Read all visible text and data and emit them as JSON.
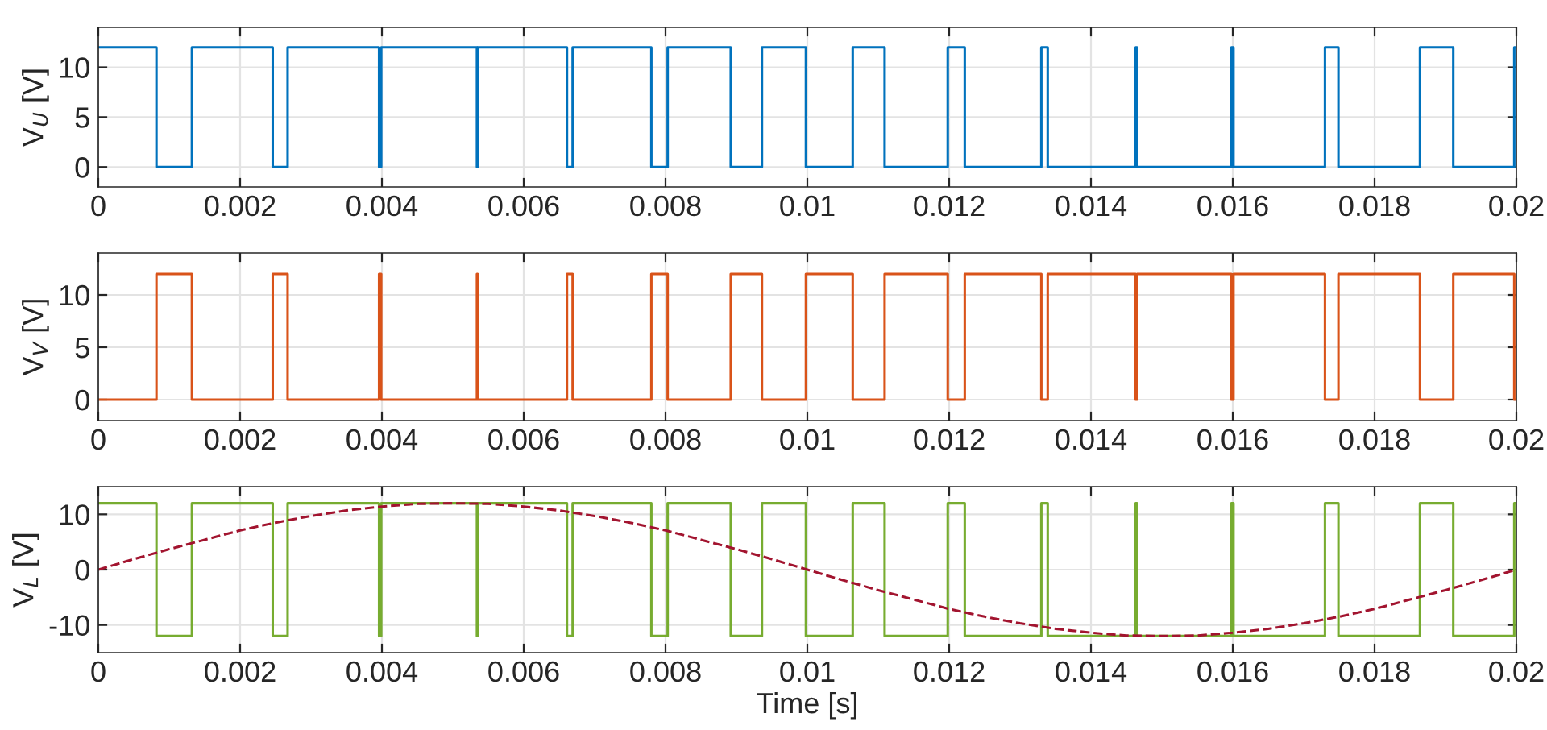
{
  "chart_data": [
    {
      "type": "line",
      "ylabel": "V$_{U}$ [V]",
      "xlim": [
        0,
        0.02
      ],
      "xticks": [
        0,
        0.002,
        0.004,
        0.006,
        0.008,
        0.01,
        0.012,
        0.014,
        0.016,
        0.018,
        0.02
      ],
      "ylim": [
        -2,
        14
      ],
      "yticks": [
        0,
        5,
        10
      ],
      "grid": true,
      "series": [
        {
          "type": "step",
          "color": "#0072bd",
          "x": [
            0,
            0.00082,
            0.00132,
            0.00246,
            0.00267,
            0.00396,
            0.00399,
            0.00534,
            0.00535,
            0.00661,
            0.00669,
            0.0078,
            0.00803,
            0.00892,
            0.00936,
            0.00998,
            0.01064,
            0.01109,
            0.01198,
            0.01222,
            0.0133,
            0.01339,
            0.01463,
            0.01465,
            0.01598,
            0.01601,
            0.0173,
            0.01749,
            0.01864,
            0.01911,
            0.01997,
            0.02
          ],
          "values": [
            12,
            0,
            12,
            0,
            12,
            0,
            12,
            0,
            12,
            0,
            12,
            0,
            12,
            0,
            12,
            0,
            12,
            0,
            12,
            0,
            12,
            0,
            12,
            0,
            12,
            0,
            12,
            0,
            12,
            0,
            12,
            12
          ]
        }
      ]
    },
    {
      "type": "line",
      "ylabel": "V$_{V}$ [V]",
      "xlim": [
        0,
        0.02
      ],
      "xticks": [
        0,
        0.002,
        0.004,
        0.006,
        0.008,
        0.01,
        0.012,
        0.014,
        0.016,
        0.018,
        0.02
      ],
      "ylim": [
        -2,
        14
      ],
      "yticks": [
        0,
        5,
        10
      ],
      "grid": true,
      "series": [
        {
          "type": "step",
          "color": "#d95319",
          "x": [
            0,
            0.00082,
            0.00132,
            0.00246,
            0.00267,
            0.00396,
            0.00399,
            0.00534,
            0.00535,
            0.00661,
            0.00669,
            0.0078,
            0.00803,
            0.00892,
            0.00936,
            0.00998,
            0.01064,
            0.01109,
            0.01198,
            0.01222,
            0.0133,
            0.01339,
            0.01463,
            0.01465,
            0.01598,
            0.01601,
            0.0173,
            0.01749,
            0.01864,
            0.01911,
            0.01997,
            0.02
          ],
          "values": [
            0,
            12,
            0,
            12,
            0,
            12,
            0,
            12,
            0,
            12,
            0,
            12,
            0,
            12,
            0,
            12,
            0,
            12,
            0,
            12,
            0,
            12,
            0,
            12,
            0,
            12,
            0,
            12,
            0,
            12,
            0,
            0
          ]
        }
      ]
    },
    {
      "type": "line",
      "ylabel": "V$_{L}$ [V]",
      "xlabel": "Time [s]",
      "xlim": [
        0,
        0.02
      ],
      "xticks": [
        0,
        0.002,
        0.004,
        0.006,
        0.008,
        0.01,
        0.012,
        0.014,
        0.016,
        0.018,
        0.02
      ],
      "ylim": [
        -15,
        15
      ],
      "yticks": [
        -10,
        0,
        10
      ],
      "grid": true,
      "series": [
        {
          "type": "step",
          "color": "#77ac30",
          "x": [
            0,
            0.00082,
            0.00132,
            0.00246,
            0.00267,
            0.00396,
            0.00399,
            0.00534,
            0.00535,
            0.00661,
            0.00669,
            0.0078,
            0.00803,
            0.00892,
            0.00936,
            0.00998,
            0.01064,
            0.01109,
            0.01198,
            0.01222,
            0.0133,
            0.01339,
            0.01463,
            0.01465,
            0.01598,
            0.01601,
            0.0173,
            0.01749,
            0.01864,
            0.01911,
            0.01997,
            0.02
          ],
          "values": [
            12,
            -12,
            12,
            -12,
            12,
            -12,
            12,
            -12,
            12,
            -12,
            12,
            -12,
            12,
            -12,
            12,
            -12,
            12,
            -12,
            12,
            -12,
            12,
            -12,
            12,
            -12,
            12,
            -12,
            12,
            -12,
            12,
            -12,
            12,
            12
          ]
        },
        {
          "type": "line",
          "line_style": "dashed",
          "color": "#a2142f",
          "x": [
            0,
            0.0005,
            0.001,
            0.0015,
            0.002,
            0.0025,
            0.003,
            0.0035,
            0.004,
            0.0045,
            0.005,
            0.0055,
            0.006,
            0.0065,
            0.007,
            0.0075,
            0.008,
            0.0085,
            0.009,
            0.0095,
            0.01,
            0.0105,
            0.011,
            0.0115,
            0.012,
            0.0125,
            0.013,
            0.0135,
            0.014,
            0.0145,
            0.015,
            0.0155,
            0.016,
            0.0165,
            0.017,
            0.0175,
            0.018,
            0.0185,
            0.019,
            0.0195,
            0.02
          ],
          "values": [
            0,
            1.9,
            3.7,
            5.4,
            7.1,
            8.5,
            9.7,
            10.7,
            11.4,
            11.9,
            12,
            11.9,
            11.4,
            10.7,
            9.7,
            8.5,
            7.1,
            5.4,
            3.7,
            1.9,
            0,
            -1.9,
            -3.7,
            -5.4,
            -7.1,
            -8.5,
            -9.7,
            -10.7,
            -11.4,
            -11.9,
            -12,
            -11.9,
            -11.4,
            -10.7,
            -9.7,
            -8.5,
            -7.1,
            -5.4,
            -3.7,
            -1.9,
            0
          ]
        }
      ]
    }
  ]
}
